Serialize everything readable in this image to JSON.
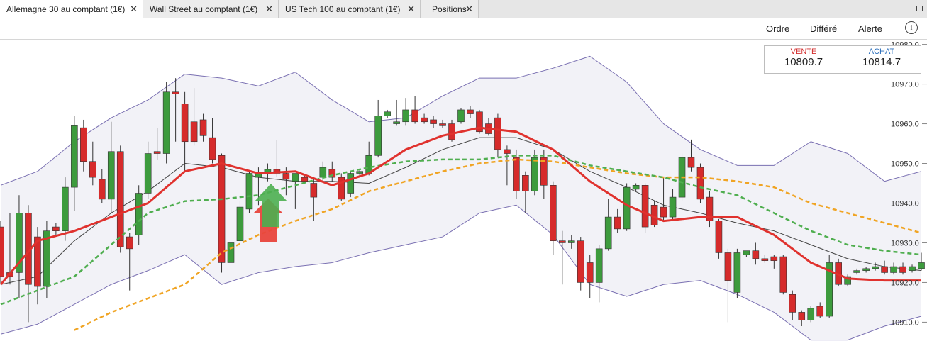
{
  "tabs": [
    {
      "label": "Allemagne 30 au comptant (1€)",
      "close": "✕"
    },
    {
      "label": "Wall Street au comptant (1€)",
      "close": "✕"
    },
    {
      "label": "US Tech 100 au comptant (1€)",
      "close": "✕"
    },
    {
      "label": "Positions",
      "close": "✕"
    }
  ],
  "toolbar": [
    "Ordre",
    "Différé",
    "Alerte"
  ],
  "info": "i",
  "quote": {
    "sell_label": "VENTE",
    "sell": "10809.7",
    "buy_label": "ACHAT",
    "buy": "10814.7"
  },
  "chart_data": {
    "type": "candlestick",
    "ylim": [
      10904,
      10981
    ],
    "yticks": [
      {
        "value": 10980,
        "label": "10980.0"
      },
      {
        "value": 10970,
        "label": "10970.0"
      },
      {
        "value": 10960,
        "label": "10960.0"
      },
      {
        "value": 10950,
        "label": "10950.0"
      },
      {
        "value": 10940,
        "label": "10940.0"
      },
      {
        "value": 10930,
        "label": "10930.0"
      },
      {
        "value": 10920,
        "label": "10920.0"
      },
      {
        "value": 10910,
        "label": "10910.0"
      }
    ],
    "up_color": "#3d9b3d",
    "down_color": "#d62b2b",
    "ohlc": [
      [
        10934,
        10935.5,
        10919.5,
        10921.5
      ],
      [
        10922.5,
        10937.5,
        10919.5,
        10921.5
      ],
      [
        10922.5,
        10942,
        10916,
        10937.5
      ],
      [
        10937.5,
        10939.5,
        10910,
        10919.5
      ],
      [
        10931.5,
        10934,
        10914.5,
        10919
      ],
      [
        10919,
        10935.5,
        10916,
        10933
      ],
      [
        10934,
        10935,
        10932,
        10933
      ],
      [
        10933,
        10946.5,
        10930.5,
        10944
      ],
      [
        10944,
        10962,
        10938,
        10959.5
      ],
      [
        10959,
        10961,
        10948,
        10950.5
      ],
      [
        10950.5,
        10955.5,
        10944.5,
        10946.5
      ],
      [
        10946,
        10948.5,
        10940,
        10941
      ],
      [
        10941,
        10960.5,
        10937.5,
        10953
      ],
      [
        10953,
        10954.5,
        10927.5,
        10929
      ],
      [
        10931.5,
        10932.5,
        10918,
        10928.5
      ],
      [
        10932,
        10944.5,
        10929.5,
        10942.5
      ],
      [
        10942.5,
        10955.5,
        10941,
        10952.5
      ],
      [
        10953,
        10959,
        10951,
        10952.5
      ],
      [
        10952.5,
        10970.5,
        10950,
        10968
      ],
      [
        10968,
        10971.5,
        10955.5,
        10967.5
      ],
      [
        10965,
        10968,
        10948,
        10955.5
      ],
      [
        10960.5,
        10969,
        10954.5,
        10955.5
      ],
      [
        10961,
        10962.5,
        10955.5,
        10957
      ],
      [
        10956.5,
        10961.5,
        10950,
        10951
      ],
      [
        10952,
        10952.5,
        10922.5,
        10925
      ],
      [
        10925,
        10931.5,
        10917.5,
        10930
      ],
      [
        10930.5,
        10940.5,
        10929,
        10939
      ],
      [
        10938.5,
        10948,
        10937.5,
        10947.5
      ],
      [
        10946.5,
        10949,
        10939.5,
        10947.5
      ],
      [
        10947.5,
        10950,
        10945.5,
        10948.5
      ],
      [
        10948.5,
        10956,
        10946.5,
        10947.5
      ],
      [
        10947.5,
        10949,
        10942,
        10946
      ],
      [
        10945.5,
        10947.5,
        10938.5,
        10947.5
      ],
      [
        10946.5,
        10947,
        10945,
        10945.5
      ],
      [
        10945,
        10946.5,
        10935.5,
        10941.5
      ],
      [
        10946.5,
        10950.5,
        10945.5,
        10949
      ],
      [
        10948.5,
        10950.5,
        10945.5,
        10946.5
      ],
      [
        10946.5,
        10947.5,
        10940.5,
        10941
      ],
      [
        10942.5,
        10948,
        10941.5,
        10947.5
      ],
      [
        10947.5,
        10948.5,
        10946.5,
        10948
      ],
      [
        10947.5,
        10955.5,
        10947,
        10952
      ],
      [
        10952,
        10966,
        10951.5,
        10962
      ],
      [
        10962,
        10963.5,
        10961.5,
        10963
      ],
      [
        10960,
        10966,
        10959.5,
        10960.5
      ],
      [
        10960.5,
        10966.5,
        10959.5,
        10963.5
      ],
      [
        10963.5,
        10967,
        10960,
        10960.5
      ],
      [
        10961.5,
        10962.5,
        10960,
        10960.5
      ],
      [
        10961,
        10962,
        10959,
        10960
      ],
      [
        10960,
        10961,
        10959,
        10959.5
      ],
      [
        10960,
        10961,
        10955.5,
        10956
      ],
      [
        10960.5,
        10964,
        10960,
        10963.5
      ],
      [
        10963.5,
        10964.5,
        10961.5,
        10962.5
      ],
      [
        10963,
        10963.5,
        10957.5,
        10958
      ],
      [
        10960,
        10961.5,
        10957,
        10957.5
      ],
      [
        10961.5,
        10962.5,
        10951.5,
        10953.5
      ],
      [
        10953.5,
        10954.5,
        10944.5,
        10952.5
      ],
      [
        10951.5,
        10953.5,
        10941,
        10943
      ],
      [
        10947,
        10948,
        10937.5,
        10943
      ],
      [
        10943,
        10953.5,
        10942,
        10951.5
      ],
      [
        10951.5,
        10953.5,
        10941,
        10944.5
      ],
      [
        10944.5,
        10945.5,
        10927,
        10930.5
      ],
      [
        10930.5,
        10933,
        10919.5,
        10930
      ],
      [
        10930,
        10932,
        10928.5,
        10930.5
      ],
      [
        10930.5,
        10931.5,
        10918,
        10920
      ],
      [
        10925,
        10927,
        10916,
        10920
      ],
      [
        10920,
        10929.5,
        10915,
        10928.5
      ],
      [
        10928.5,
        10941,
        10928,
        10936.5
      ],
      [
        10936.5,
        10938.5,
        10932.5,
        10933.5
      ],
      [
        10933.5,
        10945,
        10933,
        10944
      ],
      [
        10943.5,
        10945,
        10943,
        10944.5
      ],
      [
        10944.5,
        10945,
        10932.5,
        10934
      ],
      [
        10939.5,
        10940.5,
        10934,
        10934.5
      ],
      [
        10939,
        10946.5,
        10935.5,
        10936.5
      ],
      [
        10936.5,
        10943.5,
        10935.5,
        10941.5
      ],
      [
        10941.5,
        10952.5,
        10940.5,
        10951.5
      ],
      [
        10951.5,
        10956,
        10948,
        10949
      ],
      [
        10949,
        10950,
        10940,
        10941
      ],
      [
        10941.5,
        10943,
        10934,
        10935.5
      ],
      [
        10935.5,
        10936,
        10926,
        10927.5
      ],
      [
        10927.5,
        10928.5,
        10910,
        10920.5
      ],
      [
        10917.5,
        10928.5,
        10916,
        10927.5
      ],
      [
        10927,
        10928,
        10926.5,
        10928
      ],
      [
        10928,
        10930,
        10924.5,
        10926
      ],
      [
        10926,
        10927,
        10925,
        10925.5
      ],
      [
        10926.5,
        10927,
        10923.5,
        10925.5
      ],
      [
        10926.5,
        10927,
        10917,
        10917.5
      ],
      [
        10917,
        10918,
        10910.5,
        10912.5
      ],
      [
        10912.5,
        10913,
        10909,
        10910.5
      ],
      [
        10910.5,
        10914,
        10910,
        10913.5
      ],
      [
        10914,
        10915,
        10911,
        10911.5
      ],
      [
        10911.5,
        10927,
        10911,
        10925
      ],
      [
        10925,
        10926,
        10919,
        10919.5
      ],
      [
        10919.5,
        10922,
        10919,
        10921.5
      ],
      [
        10922.5,
        10923.5,
        10922,
        10923
      ],
      [
        10923,
        10924,
        10922.5,
        10923.5
      ],
      [
        10923.5,
        10925,
        10923,
        10924
      ],
      [
        10924,
        10925.5,
        10922,
        10922.5
      ],
      [
        10922.5,
        10925,
        10922,
        10924
      ],
      [
        10924,
        10925,
        10922,
        10922.5
      ],
      [
        10923,
        10924.5,
        10922.5,
        10924
      ],
      [
        10923.5,
        10927.5,
        10923,
        10925
      ]
    ],
    "indicator_x": [
      0,
      4,
      8,
      12,
      16,
      20,
      24,
      28,
      32,
      36,
      40,
      44,
      48,
      52,
      56,
      60,
      64,
      68,
      72,
      76,
      80,
      84,
      88,
      92,
      96,
      100
    ],
    "band_fill": "#f2f2f7",
    "series": [
      {
        "color": "#7a70b2",
        "width": 1,
        "values": [
          10944.5,
          10948,
          10955.5,
          10961.5,
          10966,
          10972.5,
          10971.5,
          10969.5,
          10973,
          10966,
          10960.5,
          10961.5,
          10967,
          10971.5,
          10971.5,
          10974,
          10977,
          10970.5,
          10960,
          10953.5,
          10949.5,
          10949.5,
          10955.5,
          10952.5,
          10945.5,
          10948
        ]
      },
      {
        "color": "#7a70b2",
        "width": 1,
        "values": [
          10907,
          10909.5,
          10914.5,
          10919.5,
          10923,
          10927,
          10919.5,
          10922.5,
          10924,
          10925,
          10927.5,
          10929.5,
          10931.5,
          10937.5,
          10939.5,
          10932,
          10919.5,
          10916.5,
          10919.5,
          10920.5,
          10917,
          10912.5,
          10905.5,
          10905.5,
          10909,
          10911.5
        ]
      },
      {
        "color": "#444444",
        "width": 1,
        "values": [
          10919.5,
          10921.5,
          10930.5,
          10937.5,
          10943,
          10950,
          10949,
          10946.5,
          10945.5,
          10945.5,
          10945,
          10949,
          10953.5,
          10956.5,
          10956.5,
          10953.5,
          10948,
          10944,
          10939.5,
          10937.5,
          10935,
          10933,
          10929.5,
          10926,
          10924,
          10923
        ]
      },
      {
        "color": "#f0a423",
        "width": 2.5,
        "dash": true,
        "values": [
          null,
          null,
          10908,
          10912.5,
          10916,
          10919.5,
          10927.5,
          10932,
          10935.5,
          10938.5,
          10943,
          10945.5,
          10948,
          10950,
          10951,
          10950.5,
          10949,
          10947.5,
          10946.5,
          10946.5,
          10945.5,
          10944,
          10940,
          10937.5,
          10935,
          10932.5
        ]
      },
      {
        "color": "#4fae4f",
        "width": 2.5,
        "dash": true,
        "values": [
          10914.5,
          10918,
          10921.5,
          10929.5,
          10937.5,
          10940.5,
          10941,
          10942,
          10944.5,
          10947,
          10949,
          10950.5,
          10951,
          10951,
          10952,
          10952,
          10949.5,
          10948,
          10946.5,
          10944,
          10942,
          10937.5,
          10933,
          10929.5,
          10928,
          10927
        ]
      },
      {
        "color": "#e0322e",
        "width": 3,
        "values": [
          10919.5,
          10930.5,
          10933,
          10936.5,
          10940,
          10948,
          10950,
          10947.5,
          10948,
          10944.5,
          10947.5,
          10953.5,
          10957,
          10959,
          10958,
          10953.5,
          10945.5,
          10939.5,
          10935.5,
          10936.5,
          10936.5,
          10932,
          10925,
          10921,
          10920.5,
          10920.5
        ]
      }
    ]
  }
}
